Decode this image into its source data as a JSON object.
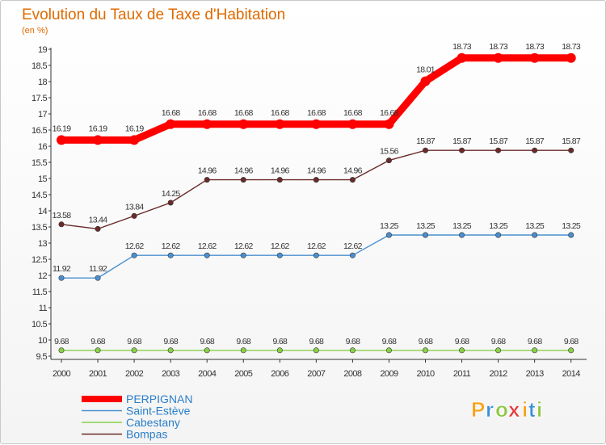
{
  "chart_data": {
    "type": "line",
    "title": "Evolution du Taux de Taxe d'Habitation",
    "ylabel": "(en %)",
    "xlabel": "",
    "ylim": [
      9.5,
      19
    ],
    "ytick_step": 0.5,
    "grid": false,
    "legend_position": "bottom-left",
    "categories": [
      "2000",
      "2001",
      "2002",
      "2003",
      "2004",
      "2005",
      "2006",
      "2007",
      "2008",
      "2009",
      "2010",
      "2011",
      "2012",
      "2013",
      "2014"
    ],
    "series": [
      {
        "name": "PERPIGNAN",
        "color": "#ff0000",
        "style": "thick",
        "values": [
          16.19,
          16.19,
          16.19,
          16.68,
          16.68,
          16.68,
          16.68,
          16.68,
          16.68,
          16.68,
          18.01,
          18.73,
          18.73,
          18.73,
          18.73
        ],
        "labels": [
          "16.19",
          "16.19",
          "16.19",
          "16.68",
          "16.68",
          "16.68",
          "16.68",
          "16.68",
          "16.68",
          "16.68",
          "18.01",
          "18.73",
          "18.73",
          "18.73",
          "18.73"
        ]
      },
      {
        "name": "Saint-Estève",
        "color": "#4a90d0",
        "style": "thin",
        "values": [
          11.92,
          11.92,
          12.62,
          12.62,
          12.62,
          12.62,
          12.62,
          12.62,
          12.62,
          13.25,
          13.25,
          13.25,
          13.25,
          13.25,
          13.25
        ],
        "labels": [
          "11.92",
          "11.92",
          "12.62",
          "12.62",
          "12.62",
          "12.62",
          "12.62",
          "12.62",
          "12.62",
          "13.25",
          "13.25",
          "13.25",
          "13.25",
          "13.25",
          "13.25"
        ]
      },
      {
        "name": "Cabestany",
        "color": "#88d048",
        "style": "thin",
        "values": [
          9.68,
          9.68,
          9.68,
          9.68,
          9.68,
          9.68,
          9.68,
          9.68,
          9.68,
          9.68,
          9.68,
          9.68,
          9.68,
          9.68,
          9.68
        ],
        "labels": [
          "9.68",
          "9.68",
          "9.68",
          "9.68",
          "9.68",
          "9.68",
          "9.68",
          "9.68",
          "9.68",
          "9.68",
          "9.68",
          "9.68",
          "9.68",
          "9.68",
          "9.68"
        ]
      },
      {
        "name": "Bompas",
        "color": "#6b2a2a",
        "style": "thin",
        "values": [
          13.58,
          13.44,
          13.84,
          14.25,
          14.96,
          14.96,
          14.96,
          14.96,
          14.96,
          15.56,
          15.87,
          15.87,
          15.87,
          15.87,
          15.87
        ],
        "labels": [
          "13.58",
          "13.44",
          "13.84",
          "14.25",
          "14.96",
          "14.96",
          "14.96",
          "14.96",
          "14.96",
          "15.56",
          "15.87",
          "15.87",
          "15.87",
          "15.87",
          "15.87"
        ]
      }
    ]
  },
  "logo": {
    "letters": [
      "P",
      "r",
      "o",
      "x",
      "i",
      "t",
      "i"
    ],
    "colors": [
      "#f7a21b",
      "#3a8fd8",
      "#8cc63f",
      "#e63a3a",
      "#f7a21b",
      "#3a8fd8",
      "#8cc63f"
    ]
  }
}
